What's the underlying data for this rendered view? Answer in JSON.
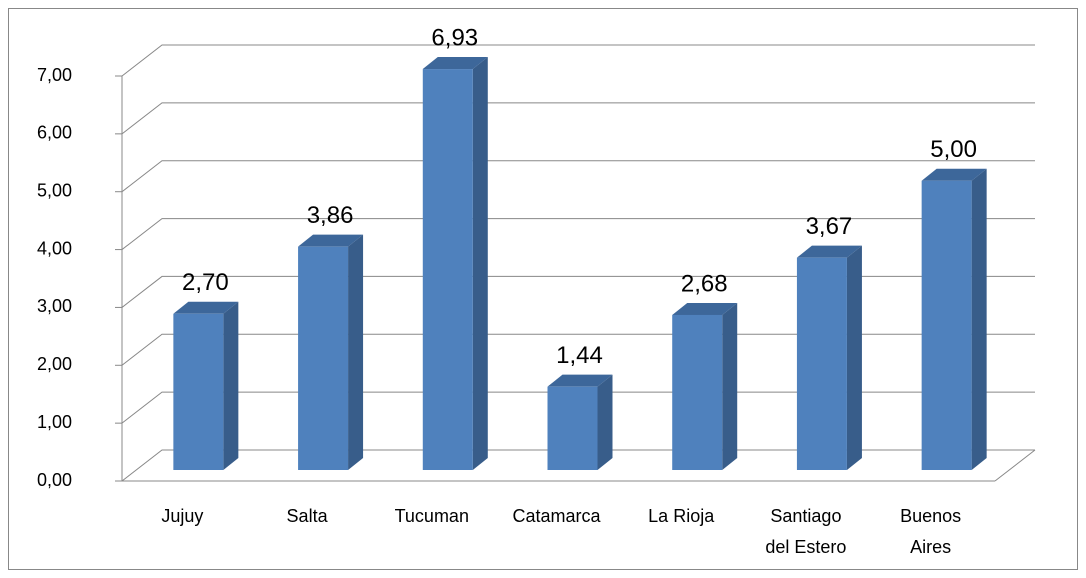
{
  "chart_data": {
    "type": "bar",
    "categories": [
      "Jujuy",
      "Salta",
      "Tucuman",
      "Catamarca",
      "La Rioja",
      "Santiago del Estero",
      "Buenos Aires"
    ],
    "values": [
      2.7,
      3.86,
      6.93,
      1.44,
      2.68,
      3.67,
      5.0
    ],
    "value_labels": [
      "2,70",
      "3,86",
      "6,93",
      "1,44",
      "2,68",
      "3,67",
      "5,00"
    ],
    "color": "#4f81bd",
    "ylim": [
      0,
      7
    ],
    "yticks": [
      {
        "value": 0,
        "label": "0,00"
      },
      {
        "value": 1,
        "label": "1,00"
      },
      {
        "value": 2,
        "label": "2,00"
      },
      {
        "value": 3,
        "label": "3,00"
      },
      {
        "value": 4,
        "label": "4,00"
      },
      {
        "value": 5,
        "label": "5,00"
      },
      {
        "value": 6,
        "label": "6,00"
      },
      {
        "value": 7,
        "label": "7,00"
      }
    ],
    "grid": true
  }
}
